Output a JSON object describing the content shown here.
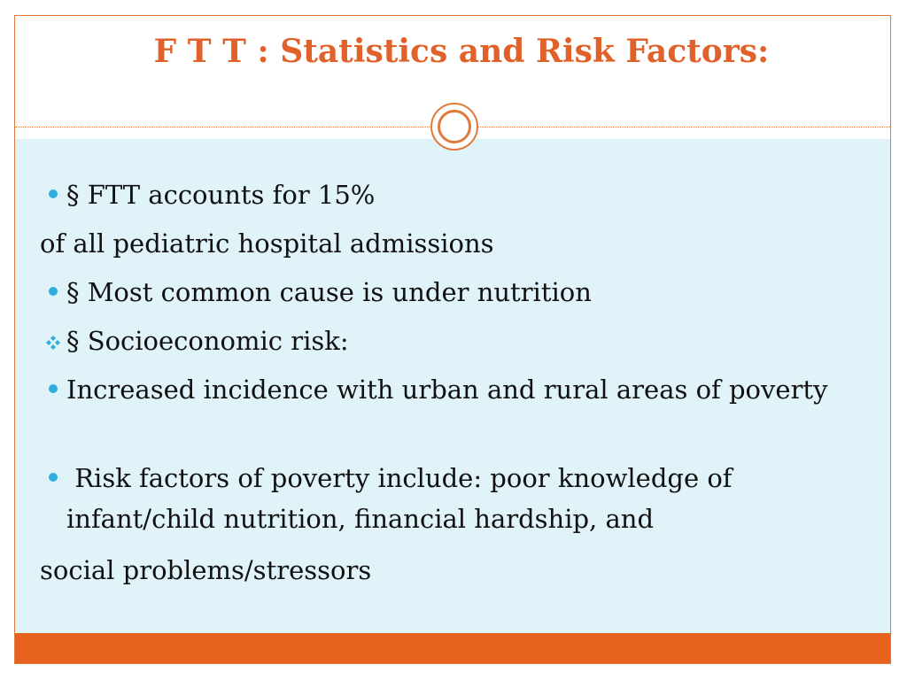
{
  "slide": {
    "title": "F T T : Statistics and Risk Factors:",
    "colors": {
      "accent": "#e0622a",
      "footer": "#e8621f",
      "content_bg": "#dff3f8",
      "bullet": "#2eaede"
    },
    "body": [
      {
        "bullet": "dot",
        "text": "§ FTT accounts for 15%"
      },
      {
        "bullet": "none",
        "text": "of all pediatric hospital admissions"
      },
      {
        "bullet": "dot",
        "text": "§ Most common cause is under nutrition"
      },
      {
        "bullet": "diamond",
        "text": "§ Socioeconomic risk:"
      },
      {
        "bullet": "dot",
        "text": "Increased incidence with urban and rural areas of poverty"
      },
      {
        "bullet": "dot",
        "text": " Risk factors of poverty include: poor knowledge of infant/child nutrition, financial hardship, and"
      },
      {
        "bullet": "none",
        "text": "social problems/stressors"
      }
    ]
  }
}
